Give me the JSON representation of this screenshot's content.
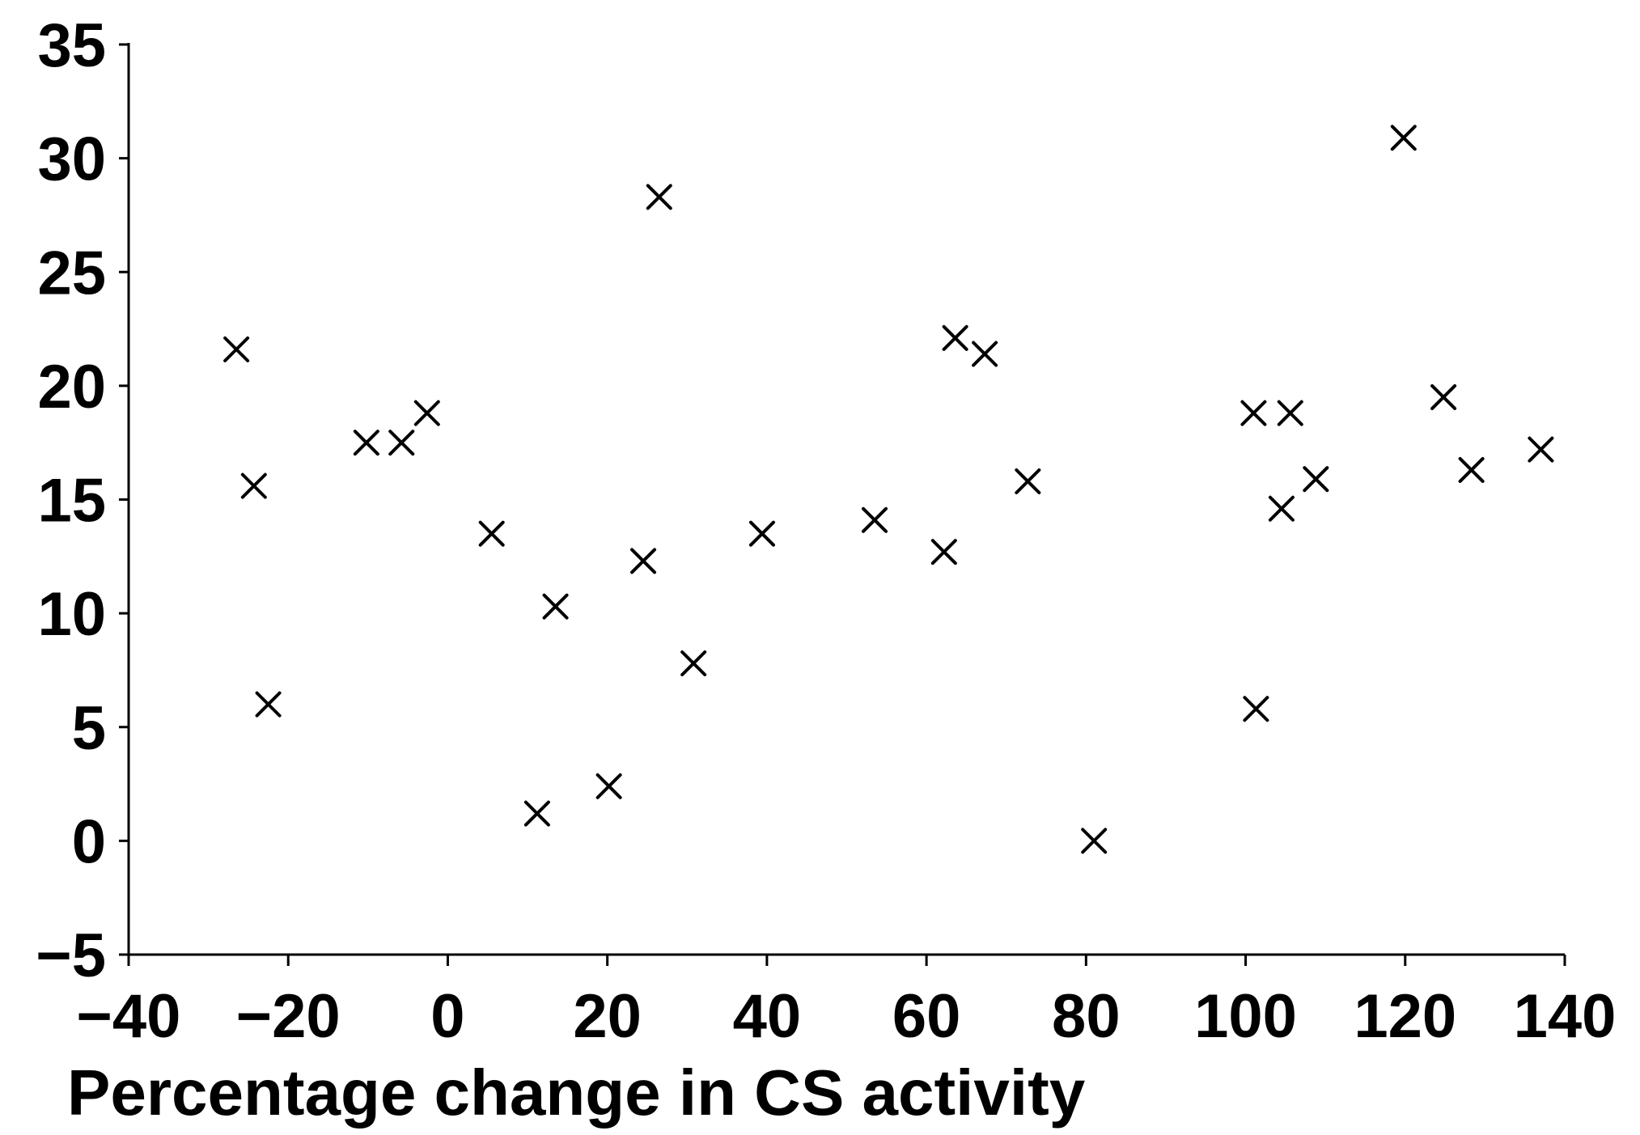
{
  "chart_data": {
    "type": "scatter",
    "title": "",
    "xlabel": "Percentage change in CS activity",
    "ylabel": "",
    "xlim": [
      -40,
      140
    ],
    "ylim": [
      -5,
      35
    ],
    "x_ticks": [
      -40,
      -20,
      0,
      20,
      40,
      60,
      80,
      100,
      120,
      140
    ],
    "y_ticks": [
      -5,
      0,
      5,
      10,
      15,
      20,
      25,
      30,
      35
    ],
    "x_tick_labels": [
      "−40",
      "−20",
      "0",
      "20",
      "40",
      "60",
      "80",
      "100",
      "120",
      "140"
    ],
    "y_tick_labels": [
      "−5",
      "0",
      "5",
      "10",
      "15",
      "20",
      "25",
      "30",
      "35"
    ],
    "marker": "x",
    "marker_color": "#000000",
    "grid": false,
    "legend": "none",
    "points": [
      {
        "x": -26.5,
        "y": 21.6
      },
      {
        "x": -24.3,
        "y": 15.6
      },
      {
        "x": -22.5,
        "y": 6.0
      },
      {
        "x": -10.2,
        "y": 17.5
      },
      {
        "x": -5.8,
        "y": 17.5
      },
      {
        "x": -2.6,
        "y": 18.8
      },
      {
        "x": 5.5,
        "y": 13.5
      },
      {
        "x": 11.2,
        "y": 1.2
      },
      {
        "x": 13.5,
        "y": 10.3
      },
      {
        "x": 20.2,
        "y": 2.4
      },
      {
        "x": 24.5,
        "y": 12.3
      },
      {
        "x": 26.5,
        "y": 28.3
      },
      {
        "x": 30.8,
        "y": 7.8
      },
      {
        "x": 39.4,
        "y": 13.5
      },
      {
        "x": 53.5,
        "y": 14.1
      },
      {
        "x": 62.2,
        "y": 12.7
      },
      {
        "x": 63.6,
        "y": 22.1
      },
      {
        "x": 67.3,
        "y": 21.4
      },
      {
        "x": 72.7,
        "y": 15.8
      },
      {
        "x": 81.0,
        "y": 0.0
      },
      {
        "x": 101.0,
        "y": 18.8
      },
      {
        "x": 101.3,
        "y": 5.8
      },
      {
        "x": 104.5,
        "y": 14.6
      },
      {
        "x": 105.6,
        "y": 18.8
      },
      {
        "x": 108.8,
        "y": 15.9
      },
      {
        "x": 119.8,
        "y": 30.9
      },
      {
        "x": 124.8,
        "y": 19.5
      },
      {
        "x": 128.3,
        "y": 16.3
      },
      {
        "x": 137.0,
        "y": 17.2
      }
    ]
  }
}
